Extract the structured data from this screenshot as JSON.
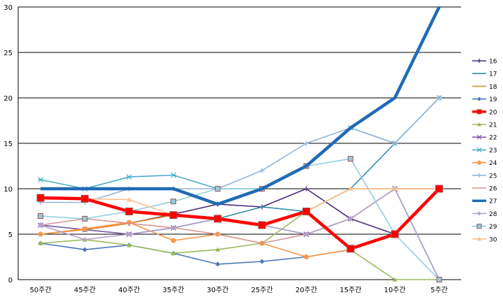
{
  "chart_data": {
    "type": "line",
    "title": "",
    "xlabel": "",
    "ylabel": "",
    "ylim": [
      0,
      30
    ],
    "yticks": [
      0,
      5,
      10,
      15,
      20,
      25,
      30
    ],
    "grid": "horizontal",
    "legend_position": "right",
    "categories": [
      "50주간",
      "45주간",
      "40주간",
      "35주간",
      "30주간",
      "25주간",
      "20주간",
      "15주간",
      "10주간",
      "5주간"
    ],
    "series": [
      {
        "name": "16",
        "color": "#4b2a7b",
        "marker": "plus",
        "values": [
          6,
          5.5,
          6.2,
          7.2,
          8.3,
          8,
          10,
          6.7,
          5,
          10
        ]
      },
      {
        "name": "17",
        "color": "#2e8da8",
        "marker": "none",
        "values": [
          6,
          5.5,
          5,
          5.7,
          6.7,
          8,
          7.5,
          10,
          15,
          20
        ]
      },
      {
        "name": "18",
        "color": "#f08a24",
        "marker": "none",
        "values": [
          5,
          5.5,
          6.2,
          7.1,
          6.7,
          6,
          7.5,
          10,
          10,
          10
        ]
      },
      {
        "name": "19",
        "color": "#4a77b8",
        "marker": "diamond",
        "values": [
          4,
          3.3,
          3.8,
          2.9,
          1.7,
          2,
          2.5,
          3.3,
          5,
          10
        ]
      },
      {
        "name": "20",
        "color": "#ff0000",
        "marker": "square",
        "values": [
          9,
          8.9,
          7.5,
          7.1,
          6.7,
          6,
          7.5,
          3.4,
          5,
          10
        ]
      },
      {
        "name": "21",
        "color": "#9bbb59",
        "marker": "triangle",
        "values": [
          4,
          4.4,
          3.8,
          2.9,
          3.3,
          4,
          7.5,
          3.3,
          0,
          0
        ]
      },
      {
        "name": "22",
        "color": "#8064a2",
        "marker": "cross",
        "values": [
          6,
          5.5,
          5,
          5.7,
          6.7,
          6,
          5,
          6.7,
          10,
          0
        ]
      },
      {
        "name": "23",
        "color": "#4bacc6",
        "marker": "star",
        "values": [
          11,
          10,
          11.3,
          11.5,
          10,
          10,
          12.5,
          16.7,
          15,
          20
        ]
      },
      {
        "name": "24",
        "color": "#f79646",
        "marker": "circle",
        "values": [
          5,
          5.6,
          6.3,
          4.3,
          5,
          4,
          2.5,
          3.3,
          5,
          10
        ]
      },
      {
        "name": "25",
        "color": "#95b3d7",
        "marker": "plus",
        "values": [
          8.5,
          8.5,
          10,
          10,
          10,
          12,
          15,
          16.7,
          15,
          20
        ]
      },
      {
        "name": "26",
        "color": "#d99694",
        "marker": "none",
        "values": [
          6,
          6.7,
          6.2,
          5.7,
          5,
          4,
          5,
          6.7,
          10,
          10
        ]
      },
      {
        "name": "27",
        "color": "#1f6bb5",
        "marker": "none",
        "values": [
          10,
          10,
          10,
          10,
          8.3,
          10,
          12.5,
          16.7,
          20,
          30
        ]
      },
      {
        "name": "28",
        "color": "#b3a2c7",
        "marker": "diamond",
        "values": [
          6,
          4.4,
          5,
          5.7,
          6.7,
          6,
          5,
          6.7,
          10,
          0
        ]
      },
      {
        "name": "29",
        "color": "#93cddd",
        "marker": "square",
        "values": [
          7,
          6.7,
          7.5,
          8.6,
          10,
          10,
          12.5,
          13.3,
          5,
          0
        ]
      },
      {
        "name": "30",
        "color": "#fac090",
        "marker": "triangle",
        "values": [
          9,
          8.9,
          8.8,
          7.1,
          6.7,
          6,
          7.5,
          10,
          10,
          10
        ]
      }
    ]
  }
}
